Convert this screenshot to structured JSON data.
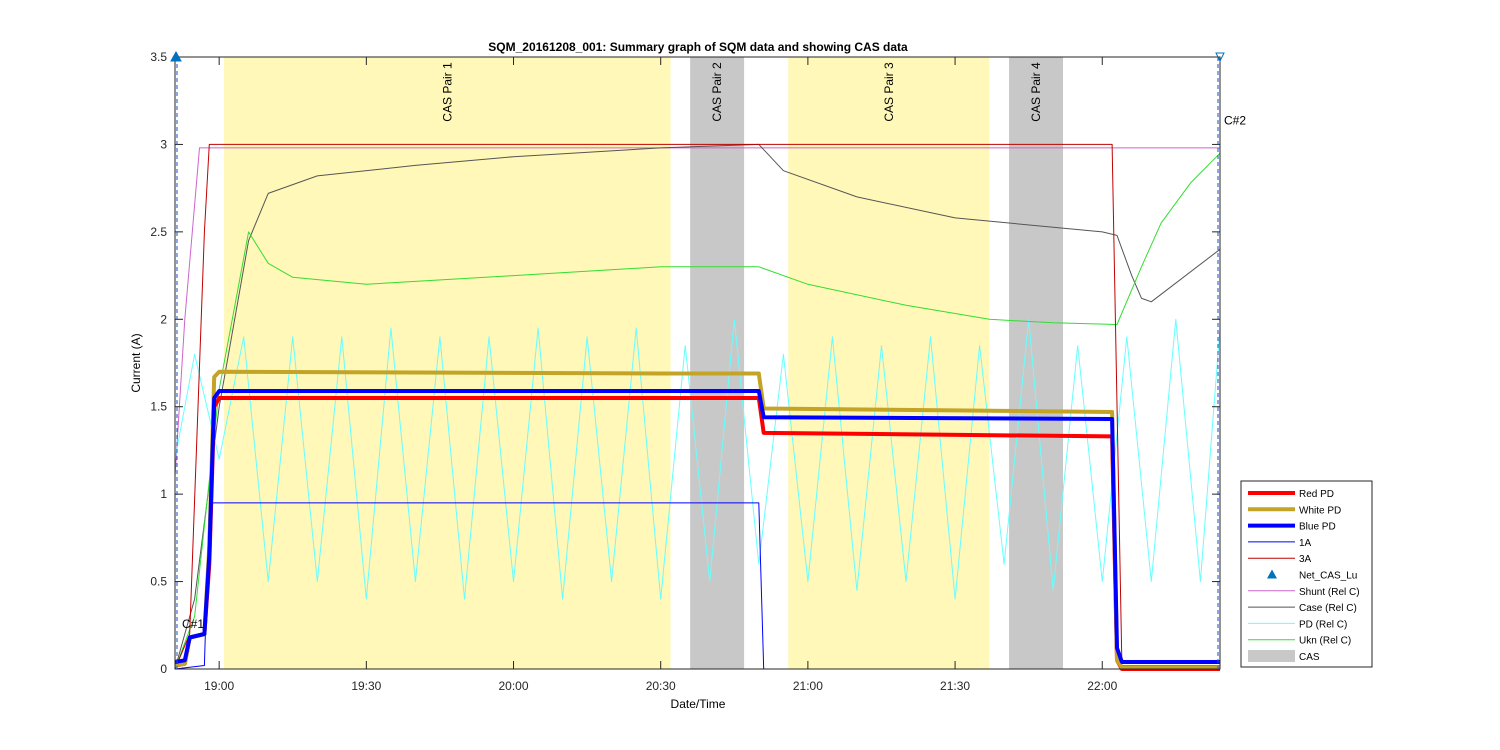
{
  "chart_data": {
    "type": "line",
    "title": "SQM_20161208_001: Summary graph of SQM data and showing CAS data",
    "xlabel": "Date/Time",
    "ylabel": "Current (A)",
    "xlim": [
      "18:51",
      "22:24"
    ],
    "ylim": [
      0,
      3.5
    ],
    "x_ticks": [
      "19:00",
      "19:30",
      "20:00",
      "20:30",
      "21:00",
      "21:30",
      "22:00"
    ],
    "y_ticks": [
      "0",
      "0.5",
      "1",
      "1.5",
      "2",
      "2.5",
      "3",
      "3.5"
    ],
    "grid": false,
    "legend_position": "outside-right-bottom",
    "cas_regions": [
      {
        "label": "CAS Pair 1",
        "start": "19:01",
        "end": "20:32",
        "color": "#FFF8B8"
      },
      {
        "label": "CAS Pair 2",
        "start": "20:36",
        "end": "20:47",
        "color": "#C8C8C8"
      },
      {
        "label": "CAS Pair 3",
        "start": "20:56",
        "end": "21:37",
        "color": "#FFF8B8"
      },
      {
        "label": "CAS Pair 4",
        "start": "21:41",
        "end": "21:52",
        "color": "#C8C8C8"
      }
    ],
    "markers": [
      {
        "label": "C#1",
        "x": "18:51",
        "y": 0.35
      },
      {
        "label": "C#2",
        "x": "22:24",
        "y": 3.0
      }
    ],
    "series": [
      {
        "name": "Red PD",
        "color": "#FF0000",
        "width": 4,
        "points": [
          [
            "18:51",
            0.02
          ],
          [
            "18:53",
            0.03
          ],
          [
            "18:54",
            0.18
          ],
          [
            "18:57",
            0.2
          ],
          [
            "18:58",
            0.6
          ],
          [
            "18:59",
            1.5
          ],
          [
            "19:00",
            1.55
          ],
          [
            "20:30",
            1.55
          ],
          [
            "20:50",
            1.55
          ],
          [
            "20:51",
            1.35
          ],
          [
            "22:02",
            1.33
          ],
          [
            "22:03",
            0.05
          ],
          [
            "22:04",
            0.0
          ],
          [
            "22:24",
            0.0
          ]
        ]
      },
      {
        "name": "White PD",
        "color": "#C4A427",
        "width": 4,
        "points": [
          [
            "18:51",
            0.02
          ],
          [
            "18:53",
            0.03
          ],
          [
            "18:54",
            0.18
          ],
          [
            "18:57",
            0.2
          ],
          [
            "18:58",
            0.7
          ],
          [
            "18:59",
            1.67
          ],
          [
            "19:00",
            1.7
          ],
          [
            "20:30",
            1.69
          ],
          [
            "20:50",
            1.69
          ],
          [
            "20:51",
            1.49
          ],
          [
            "22:02",
            1.47
          ],
          [
            "22:03",
            0.05
          ],
          [
            "22:04",
            0.01
          ],
          [
            "22:24",
            0.01
          ]
        ]
      },
      {
        "name": "Blue PD",
        "color": "#0000FF",
        "width": 4,
        "points": [
          [
            "18:51",
            0.04
          ],
          [
            "18:53",
            0.05
          ],
          [
            "18:54",
            0.18
          ],
          [
            "18:57",
            0.2
          ],
          [
            "18:58",
            0.65
          ],
          [
            "18:59",
            1.55
          ],
          [
            "19:00",
            1.59
          ],
          [
            "20:30",
            1.59
          ],
          [
            "20:50",
            1.59
          ],
          [
            "20:51",
            1.44
          ],
          [
            "22:02",
            1.43
          ],
          [
            "22:03",
            0.12
          ],
          [
            "22:04",
            0.04
          ],
          [
            "22:24",
            0.04
          ]
        ]
      },
      {
        "name": "1A",
        "color": "#0000FF",
        "width": 1,
        "points": [
          [
            "18:51",
            0.0
          ],
          [
            "18:57",
            0.02
          ],
          [
            "18:58",
            0.95
          ],
          [
            "20:50",
            0.95
          ],
          [
            "20:51",
            0.0
          ],
          [
            "22:24",
            0.0
          ]
        ]
      },
      {
        "name": "3A",
        "color": "#C00000",
        "width": 1,
        "points": [
          [
            "18:51",
            0.0
          ],
          [
            "18:54",
            0.2
          ],
          [
            "18:57",
            2.5
          ],
          [
            "18:58",
            3.0
          ],
          [
            "22:02",
            3.0
          ],
          [
            "22:04",
            0.02
          ],
          [
            "22:24",
            0.02
          ]
        ]
      },
      {
        "name": "Net_CAS_Lu",
        "color": "#0072BD",
        "width": 1,
        "marker": "triangle",
        "points": [
          [
            "18:51",
            3.5
          ]
        ]
      },
      {
        "name": "Shunt (Rel C)",
        "color": "#CC66CC",
        "width": 1,
        "points": [
          [
            "18:51",
            1.1
          ],
          [
            "18:53",
            2.0
          ],
          [
            "18:56",
            2.98
          ],
          [
            "22:24",
            2.98
          ]
        ]
      },
      {
        "name": "Case (Rel C)",
        "color": "#555555",
        "width": 1,
        "points": [
          [
            "18:51",
            0.0
          ],
          [
            "18:55",
            0.4
          ],
          [
            "19:00",
            1.5
          ],
          [
            "19:06",
            2.45
          ],
          [
            "19:10",
            2.72
          ],
          [
            "19:20",
            2.82
          ],
          [
            "19:40",
            2.88
          ],
          [
            "20:00",
            2.93
          ],
          [
            "20:30",
            2.98
          ],
          [
            "20:50",
            3.0
          ],
          [
            "20:55",
            2.85
          ],
          [
            "21:10",
            2.7
          ],
          [
            "21:30",
            2.58
          ],
          [
            "22:00",
            2.5
          ],
          [
            "22:03",
            2.48
          ],
          [
            "22:06",
            2.25
          ],
          [
            "22:08",
            2.12
          ],
          [
            "22:10",
            2.1
          ],
          [
            "22:24",
            2.4
          ]
        ]
      },
      {
        "name": "PD (Rel C)",
        "color": "#66FFFF",
        "width": 1,
        "points": [
          [
            "18:51",
            1.2
          ],
          [
            "18:55",
            1.8
          ],
          [
            "19:00",
            1.2
          ],
          [
            "19:05",
            1.9
          ],
          [
            "19:10",
            0.5
          ],
          [
            "19:15",
            1.9
          ],
          [
            "19:20",
            0.5
          ],
          [
            "19:25",
            1.9
          ],
          [
            "19:30",
            0.4
          ],
          [
            "19:35",
            1.95
          ],
          [
            "19:40",
            0.5
          ],
          [
            "19:45",
            1.9
          ],
          [
            "19:50",
            0.4
          ],
          [
            "19:55",
            1.9
          ],
          [
            "20:00",
            0.5
          ],
          [
            "20:05",
            1.95
          ],
          [
            "20:10",
            0.4
          ],
          [
            "20:15",
            1.9
          ],
          [
            "20:20",
            0.5
          ],
          [
            "20:25",
            1.95
          ],
          [
            "20:30",
            0.4
          ],
          [
            "20:35",
            1.85
          ],
          [
            "20:40",
            0.5
          ],
          [
            "20:45",
            2.0
          ],
          [
            "20:50",
            0.6
          ],
          [
            "20:55",
            1.8
          ],
          [
            "21:00",
            0.5
          ],
          [
            "21:05",
            1.9
          ],
          [
            "21:10",
            0.45
          ],
          [
            "21:15",
            1.85
          ],
          [
            "21:20",
            0.5
          ],
          [
            "21:25",
            1.9
          ],
          [
            "21:30",
            0.4
          ],
          [
            "21:35",
            1.85
          ],
          [
            "21:40",
            0.6
          ],
          [
            "21:45",
            2.0
          ],
          [
            "21:50",
            0.45
          ],
          [
            "21:55",
            1.85
          ],
          [
            "22:00",
            0.5
          ],
          [
            "22:05",
            1.9
          ],
          [
            "22:10",
            0.5
          ],
          [
            "22:15",
            2.0
          ],
          [
            "22:20",
            0.5
          ],
          [
            "22:24",
            1.95
          ]
        ]
      },
      {
        "name": "Ukn (Rel C)",
        "color": "#33DD33",
        "width": 1,
        "points": [
          [
            "18:51",
            0.0
          ],
          [
            "18:55",
            0.3
          ],
          [
            "19:00",
            1.6
          ],
          [
            "19:06",
            2.5
          ],
          [
            "19:10",
            2.32
          ],
          [
            "19:15",
            2.24
          ],
          [
            "19:30",
            2.2
          ],
          [
            "20:00",
            2.25
          ],
          [
            "20:30",
            2.3
          ],
          [
            "20:50",
            2.3
          ],
          [
            "21:00",
            2.2
          ],
          [
            "21:20",
            2.08
          ],
          [
            "21:37",
            2.0
          ],
          [
            "21:50",
            1.98
          ],
          [
            "22:03",
            1.97
          ],
          [
            "22:08",
            2.3
          ],
          [
            "22:12",
            2.55
          ],
          [
            "22:18",
            2.78
          ],
          [
            "22:24",
            2.95
          ]
        ]
      },
      {
        "name": "CAS",
        "color": "#C8C8C8",
        "width": 8,
        "points": []
      }
    ]
  }
}
